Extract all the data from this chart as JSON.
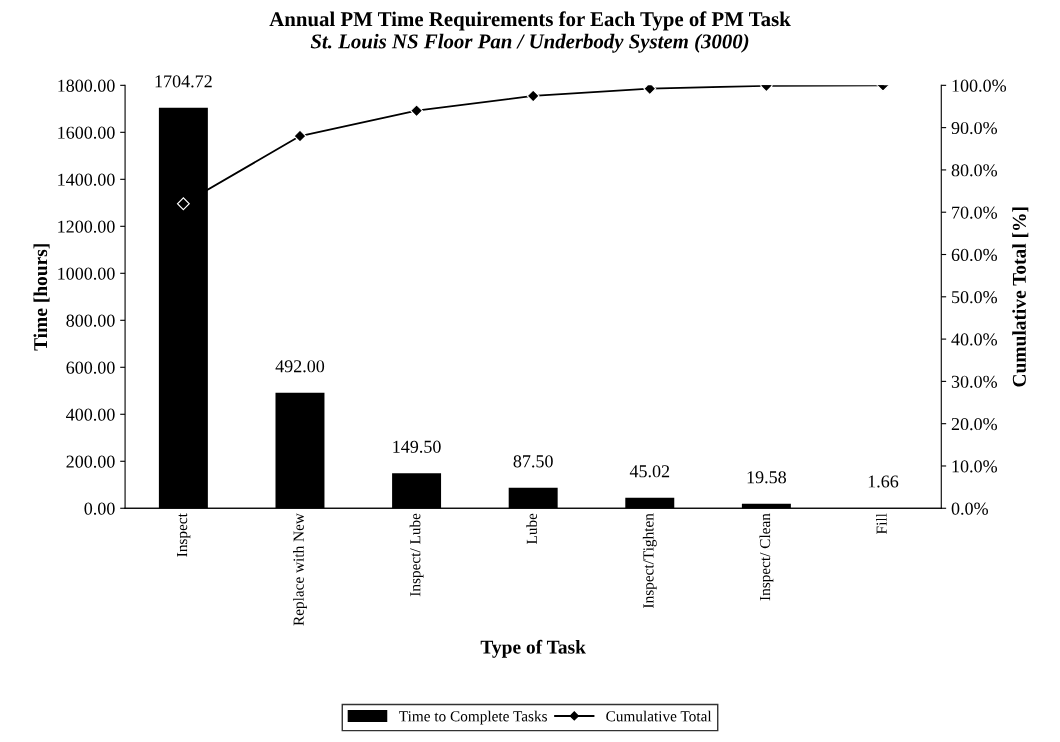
{
  "chart_data": {
    "type": "bar",
    "title": "Annual PM Time Requirements for Each Type of PM Task",
    "subtitle": "St. Louis NS Floor Pan / Underbody System (3000)",
    "xlabel": "Type of Task",
    "ylabel": "Time [hours]",
    "y2label": "Cumulative Total [%]",
    "categories": [
      "Inspect",
      "Replace with New",
      "Inspect/ Lube",
      "Lube",
      "Inspect/Tighten",
      "Inspect/ Clean",
      "Fill"
    ],
    "series": [
      {
        "name": "Time to Complete Tasks",
        "color": "#000000",
        "values": [
          1704.72,
          492.0,
          149.5,
          87.5,
          45.02,
          19.58,
          1.66
        ],
        "value_labels": [
          "1704.72",
          "492.00",
          "149.50",
          "87.50",
          "45.02",
          "19.58",
          "1.66"
        ]
      },
      {
        "name": "Cumulative Total",
        "type": "line",
        "axis": "y2",
        "color": "#000000",
        "marker": "diamond",
        "values": [
          72.0,
          88.0,
          94.0,
          97.5,
          99.2,
          99.9,
          100.0
        ]
      }
    ],
    "ylim": [
      0,
      1800
    ],
    "yticks": [
      {
        "value": 0,
        "label": "0.00"
      },
      {
        "value": 200,
        "label": "200.00"
      },
      {
        "value": 400,
        "label": "400.00"
      },
      {
        "value": 600,
        "label": "600.00"
      },
      {
        "value": 800,
        "label": "800.00"
      },
      {
        "value": 1000,
        "label": "1000.00"
      },
      {
        "value": 1200,
        "label": "1200.00"
      },
      {
        "value": 1400,
        "label": "1400.00"
      },
      {
        "value": 1600,
        "label": "1600.00"
      },
      {
        "value": 1800,
        "label": "1800.00"
      }
    ],
    "y2lim": [
      0,
      100
    ],
    "y2ticks": [
      {
        "value": 0,
        "label": "0.0%"
      },
      {
        "value": 10,
        "label": "10.0%"
      },
      {
        "value": 20,
        "label": "20.0%"
      },
      {
        "value": 30,
        "label": "30.0%"
      },
      {
        "value": 40,
        "label": "40.0%"
      },
      {
        "value": 50,
        "label": "50.0%"
      },
      {
        "value": 60,
        "label": "60.0%"
      },
      {
        "value": 70,
        "label": "70.0%"
      },
      {
        "value": 80,
        "label": "80.0%"
      },
      {
        "value": 90,
        "label": "90.0%"
      },
      {
        "value": 100,
        "label": "100.0%"
      }
    ],
    "legend": "bottom",
    "grid": false
  }
}
